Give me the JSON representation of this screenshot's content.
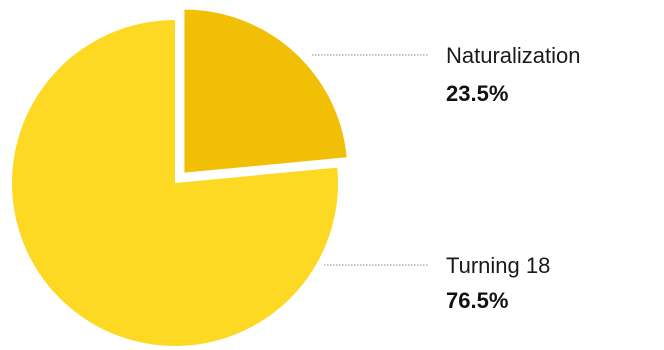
{
  "chart_data": {
    "type": "pie",
    "slices": [
      {
        "label": "Naturalization",
        "value": 23.5,
        "value_label": "23.5%",
        "color": "#f2bf07",
        "exploded": true
      },
      {
        "label": "Turning 18",
        "value": 76.5,
        "value_label": "76.5%",
        "color": "#fdd924",
        "exploded": false
      }
    ],
    "leader_line_color": "#888888"
  }
}
